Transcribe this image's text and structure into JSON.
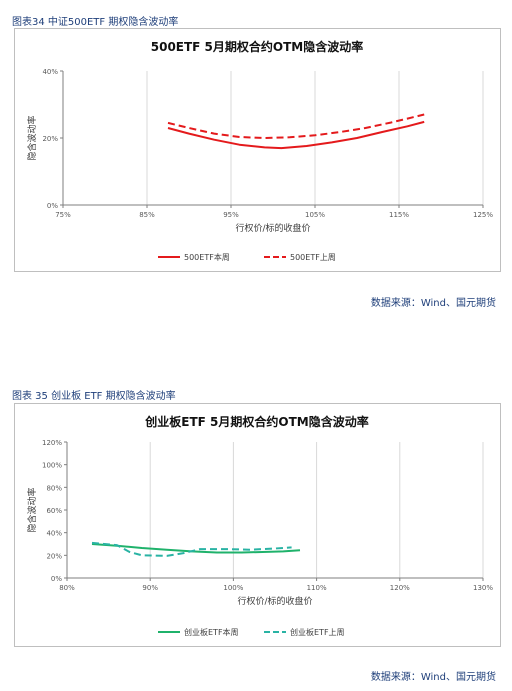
{
  "figure1": {
    "caption": "图表34 中证500ETF 期权隐含波动率",
    "source": "数据来源：Wind、国元期货"
  },
  "figure2": {
    "caption": "图表 35 创业板 ETF 期权隐含波动率",
    "source": "数据来源：Wind、国元期货"
  },
  "colors": {
    "red": "#e41a1c",
    "green": "#1fb26b",
    "teal": "#29b3a4",
    "grid": "#d9d9d9",
    "axis": "#7f7f7f"
  },
  "chart_data": [
    {
      "type": "line",
      "title": "500ETF 5月期权合约OTM隐含波动率",
      "xlabel": "行权价/标的收盘价",
      "ylabel": "隐含波动率",
      "xlim": [
        75,
        125
      ],
      "ylim": [
        0,
        40
      ],
      "xticks": [
        "75%",
        "85%",
        "95%",
        "105%",
        "115%",
        "125%"
      ],
      "xtick_values": [
        75,
        85,
        95,
        105,
        115,
        125
      ],
      "yticks": [
        "0%",
        "20%",
        "40%"
      ],
      "ytick_values": [
        0,
        20,
        40
      ],
      "grid": "vertical",
      "legend": "bottom",
      "series": [
        {
          "name": "500ETF本周",
          "color": "#e41a1c",
          "dash": "solid",
          "x": [
            87.5,
            90,
            93,
            96,
            99,
            101,
            104,
            107,
            110,
            113,
            116,
            118
          ],
          "y": [
            23,
            21.3,
            19.5,
            18,
            17.2,
            17,
            17.6,
            18.7,
            20,
            21.8,
            23.5,
            24.8
          ]
        },
        {
          "name": "500ETF上周",
          "color": "#e41a1c",
          "dash": "dashed",
          "x": [
            87.5,
            90,
            93,
            96,
            99,
            102,
            105,
            108,
            111,
            114,
            116,
            118
          ],
          "y": [
            24.5,
            23,
            21.3,
            20.3,
            20,
            20.2,
            20.8,
            21.8,
            23,
            24.6,
            25.8,
            27
          ]
        }
      ]
    },
    {
      "type": "line",
      "title": "创业板ETF 5月期权合约OTM隐含波动率",
      "xlabel": "行权价/标的收盘价",
      "ylabel": "隐含波动率",
      "xlim": [
        80,
        130
      ],
      "ylim": [
        0,
        120
      ],
      "xticks": [
        "80%",
        "90%",
        "100%",
        "110%",
        "120%",
        "130%"
      ],
      "xtick_values": [
        80,
        90,
        100,
        110,
        120,
        130
      ],
      "yticks": [
        "0%",
        "20%",
        "40%",
        "60%",
        "80%",
        "100%",
        "120%"
      ],
      "ytick_values": [
        0,
        20,
        40,
        60,
        80,
        100,
        120
      ],
      "grid": "vertical",
      "legend": "bottom",
      "series": [
        {
          "name": "创业板ETF本周",
          "color": "#1fb26b",
          "dash": "solid",
          "x": [
            83,
            86,
            89,
            92,
            95,
            98,
            101,
            104,
            106,
            108
          ],
          "y": [
            30,
            28.5,
            26.5,
            25,
            23.5,
            22.5,
            22.5,
            23,
            23.5,
            24.5
          ]
        },
        {
          "name": "创业板ETF上周",
          "color": "#29b3a4",
          "dash": "dashed",
          "x": [
            83,
            86,
            87.5,
            89,
            92,
            94,
            96,
            99,
            102,
            105,
            107
          ],
          "y": [
            31,
            29,
            23,
            20,
            19.5,
            22,
            25.5,
            25.5,
            25,
            26,
            27
          ]
        }
      ]
    }
  ]
}
